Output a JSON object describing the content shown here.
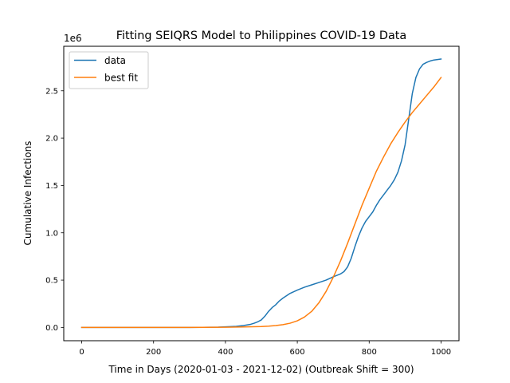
{
  "chart_data": {
    "type": "line",
    "title": "Fitting SEIQRS Model to Philippines COVID-19 Data",
    "xlabel": "Time in Days (2020-01-03 - 2021-12-02) (Outbreak Shift = 300)",
    "ylabel": "Cumulative Infections",
    "y_offset_text": "1e6",
    "xlim": [
      -50,
      1050
    ],
    "ylim": [
      -0.14,
      2.97
    ],
    "x_ticks": [
      0,
      200,
      400,
      600,
      800,
      1000
    ],
    "x_tick_labels": [
      "0",
      "200",
      "400",
      "600",
      "800",
      "1000"
    ],
    "y_ticks": [
      0.0,
      0.5,
      1.0,
      1.5,
      2.0,
      2.5
    ],
    "y_tick_labels": [
      "0.0",
      "0.5",
      "1.0",
      "1.5",
      "2.0",
      "2.5"
    ],
    "y_units": "millions of cumulative infections",
    "grid": false,
    "legend_placement": "top-left",
    "series": [
      {
        "name": "data",
        "color": "#1f77b4",
        "x": [
          0,
          100,
          200,
          300,
          380,
          400,
          430,
          450,
          470,
          480,
          490,
          500,
          510,
          520,
          530,
          540,
          550,
          560,
          580,
          600,
          620,
          640,
          660,
          680,
          700,
          720,
          730,
          740,
          750,
          760,
          770,
          780,
          790,
          800,
          810,
          820,
          830,
          840,
          850,
          860,
          870,
          880,
          890,
          900,
          910,
          920,
          930,
          940,
          950,
          960,
          970,
          980,
          990,
          1000
        ],
        "y": [
          0.0,
          0.0,
          0.0,
          0.0,
          0.003,
          0.006,
          0.012,
          0.02,
          0.033,
          0.045,
          0.06,
          0.08,
          0.12,
          0.17,
          0.21,
          0.24,
          0.28,
          0.31,
          0.36,
          0.395,
          0.425,
          0.45,
          0.475,
          0.5,
          0.535,
          0.565,
          0.59,
          0.64,
          0.73,
          0.85,
          0.96,
          1.05,
          1.12,
          1.17,
          1.22,
          1.29,
          1.35,
          1.4,
          1.45,
          1.5,
          1.56,
          1.64,
          1.76,
          1.93,
          2.2,
          2.47,
          2.64,
          2.73,
          2.78,
          2.8,
          2.815,
          2.825,
          2.83,
          2.835
        ]
      },
      {
        "name": "best fit",
        "color": "#ff7f0e",
        "x": [
          0,
          100,
          200,
          300,
          400,
          450,
          500,
          520,
          540,
          560,
          580,
          600,
          620,
          640,
          660,
          680,
          700,
          720,
          740,
          760,
          780,
          800,
          820,
          840,
          860,
          880,
          900,
          920,
          940,
          960,
          980,
          1000
        ],
        "y": [
          0.0,
          0.0,
          0.0,
          0.0,
          0.002,
          0.005,
          0.01,
          0.014,
          0.02,
          0.03,
          0.045,
          0.07,
          0.11,
          0.17,
          0.26,
          0.38,
          0.53,
          0.7,
          0.89,
          1.09,
          1.29,
          1.47,
          1.65,
          1.8,
          1.94,
          2.06,
          2.17,
          2.27,
          2.36,
          2.45,
          2.54,
          2.64
        ]
      }
    ]
  }
}
